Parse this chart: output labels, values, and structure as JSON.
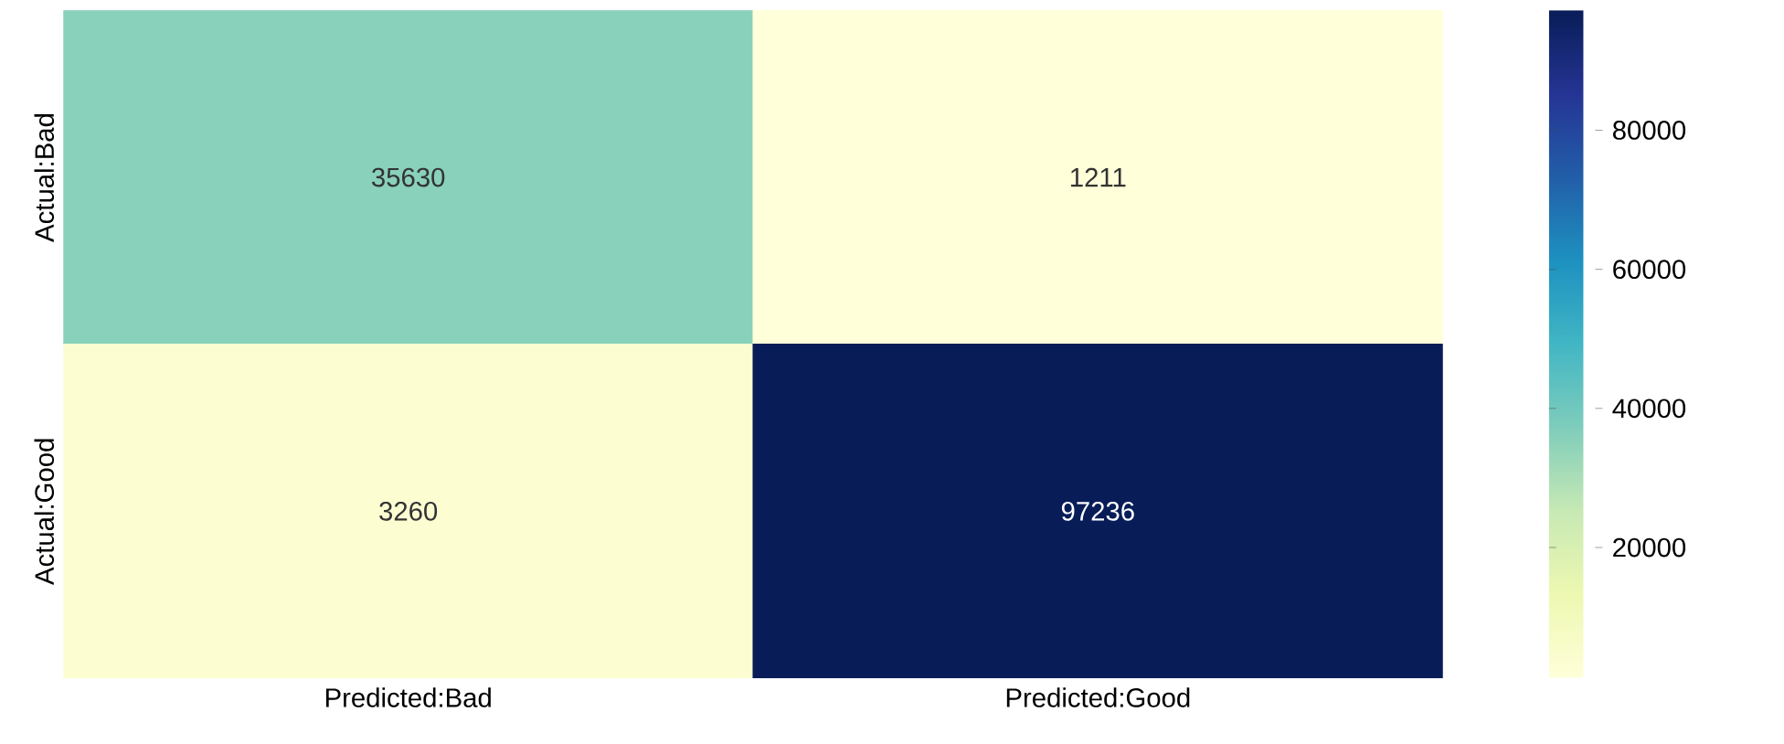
{
  "chart_data": {
    "type": "heatmap",
    "categories": [
      "Predicted:Bad",
      "Predicted:Good"
    ],
    "y_categories": [
      "Actual:Bad",
      "Actual:Good"
    ],
    "cells": [
      [
        35630,
        1211
      ],
      [
        3260,
        97236
      ]
    ],
    "data_labels": true,
    "clim": [
      1211,
      97236
    ],
    "cticks": [
      20000,
      40000,
      60000,
      80000
    ]
  }
}
